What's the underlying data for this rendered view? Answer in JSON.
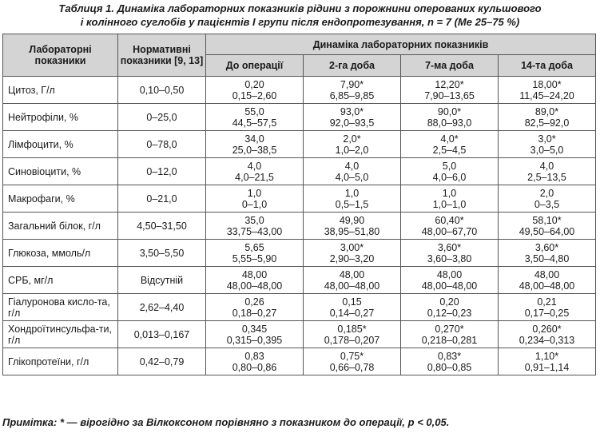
{
  "caption": {
    "line1": "Таблиця 1. Динаміка лабораторних показників рідини з порожнини оперованих кульшового",
    "line2": "і колінного суглобів у пацієнтів І групи після ендопротезування, n = 7 (Me 25–75 %)"
  },
  "header": {
    "col_indicator": "Лабораторні показники",
    "col_norm": "Нормативні показники [9, 13]",
    "group": "Динаміка лабораторних показників",
    "periods": [
      "До операції",
      "2-га доба",
      "7-ма доба",
      "14-та доба"
    ]
  },
  "rows": [
    {
      "name": "Цитоз, Г/л",
      "norm": "0,10–0,50",
      "cells": [
        [
          "0,20",
          "0,15–2,60"
        ],
        [
          "7,90*",
          "6,85–9,85"
        ],
        [
          "12,20*",
          "7,90–13,65"
        ],
        [
          "18,00*",
          "11,45–24,20"
        ]
      ]
    },
    {
      "name": "Нейтрофіли, %",
      "norm": "0–25,0",
      "cells": [
        [
          "55,0",
          "44,5–57,5"
        ],
        [
          "93,0*",
          "92,0–93,5"
        ],
        [
          "90,0*",
          "88,0–93,0"
        ],
        [
          "89,0*",
          "82,5–92,0"
        ]
      ]
    },
    {
      "name": "Лімфоцити, %",
      "norm": "0–78,0",
      "cells": [
        [
          "34,0",
          "25,0–38,5"
        ],
        [
          "2,0*",
          "1,0–2,0"
        ],
        [
          "4,0*",
          "2,5–4,5"
        ],
        [
          "3,0*",
          "3,0–5,0"
        ]
      ]
    },
    {
      "name": "Синовіоцити, %",
      "norm": "0–12,0",
      "cells": [
        [
          "4,0",
          "4,0–21,5"
        ],
        [
          "4,0",
          "4,0–5,0"
        ],
        [
          "5,0",
          "4,0–6,0"
        ],
        [
          "4,0",
          "2,5–13,5"
        ]
      ]
    },
    {
      "name": "Макрофаги, %",
      "norm": "0–21,0",
      "cells": [
        [
          "1,0",
          "0–1,0"
        ],
        [
          "1,0",
          "0,5–1,5"
        ],
        [
          "1,0",
          "1,0–1,0"
        ],
        [
          "2,0",
          "0–3,5"
        ]
      ]
    },
    {
      "name": "Загальний білок, г/л",
      "norm": "4,50–31,50",
      "cells": [
        [
          "35,0",
          "33,75–43,00"
        ],
        [
          "49,90",
          "38,95–51,80"
        ],
        [
          "60,40*",
          "48,00–67,70"
        ],
        [
          "58,10*",
          "49,50–64,00"
        ]
      ]
    },
    {
      "name": "Глюкоза, ммоль/л",
      "norm": "3,50–5,50",
      "cells": [
        [
          "5,65",
          "5,55–5,90"
        ],
        [
          "3,00*",
          "2,90–3,20"
        ],
        [
          "3,60*",
          "3,60–3,80"
        ],
        [
          "3,60*",
          "3,50–4,80"
        ]
      ]
    },
    {
      "name": "СРБ, мг/л",
      "norm": "Відсутній",
      "cells": [
        [
          "48,00",
          "48,00–48,00"
        ],
        [
          "48,00",
          "48,00–48,00"
        ],
        [
          "48,00",
          "48,00–48,00"
        ],
        [
          "48,00",
          "48,00–48,00"
        ]
      ]
    },
    {
      "name": "Гіалуронова кисло-та, г/л",
      "norm": "2,62–4,40",
      "cells": [
        [
          "0,26",
          "0,18–0,27"
        ],
        [
          "0,15",
          "0,14–0,27"
        ],
        [
          "0,20",
          "0,12–0,23"
        ],
        [
          "0,21",
          "0,17–0,25"
        ]
      ]
    },
    {
      "name": "Хондроїтинсульфа-ти, г/л",
      "norm": "0,013–0,167",
      "cells": [
        [
          "0,345",
          "0,315–0,395"
        ],
        [
          "0,185*",
          "0,178–0,207"
        ],
        [
          "0,270*",
          "0,218–0,281"
        ],
        [
          "0,260*",
          "0,234–0,313"
        ]
      ]
    },
    {
      "name": "Глікопротеїни, г/л",
      "norm": "0,42–0,79",
      "cells": [
        [
          "0,83",
          "0,80–0,86"
        ],
        [
          "0,75*",
          "0,66–0,78"
        ],
        [
          "0,83*",
          "0,80–0,85"
        ],
        [
          "1,10*",
          "0,91–1,14"
        ]
      ]
    }
  ],
  "note": "Примітка: * — вірогідно за Вілкоксоном порівняно з показником до операції, p < 0,05."
}
